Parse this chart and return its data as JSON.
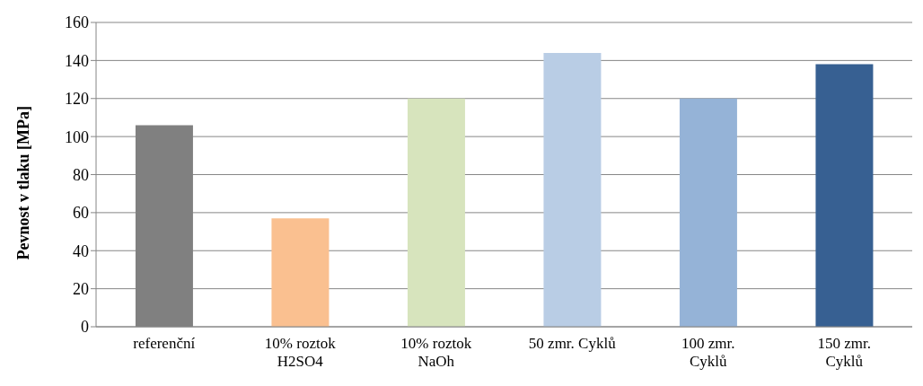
{
  "chart_data": {
    "type": "bar",
    "ylabel": "Pevnost v tlaku [MPa]",
    "categories": [
      "referenční",
      "10% roztok H2SO4",
      "10% roztok NaOh",
      "50 zmr. Cyklů",
      "100 zmr. Cyklů",
      "150 zmr. Cyklů"
    ],
    "values": [
      106,
      57,
      120,
      144,
      120,
      138
    ],
    "colors": [
      "#808080",
      "#fac090",
      "#d7e4bd",
      "#b9cde5",
      "#95b3d7",
      "#376092"
    ],
    "ylim": [
      0,
      160
    ],
    "yticks": [
      0,
      20,
      40,
      60,
      80,
      100,
      120,
      140,
      160
    ],
    "grid": "y",
    "legend": false
  }
}
